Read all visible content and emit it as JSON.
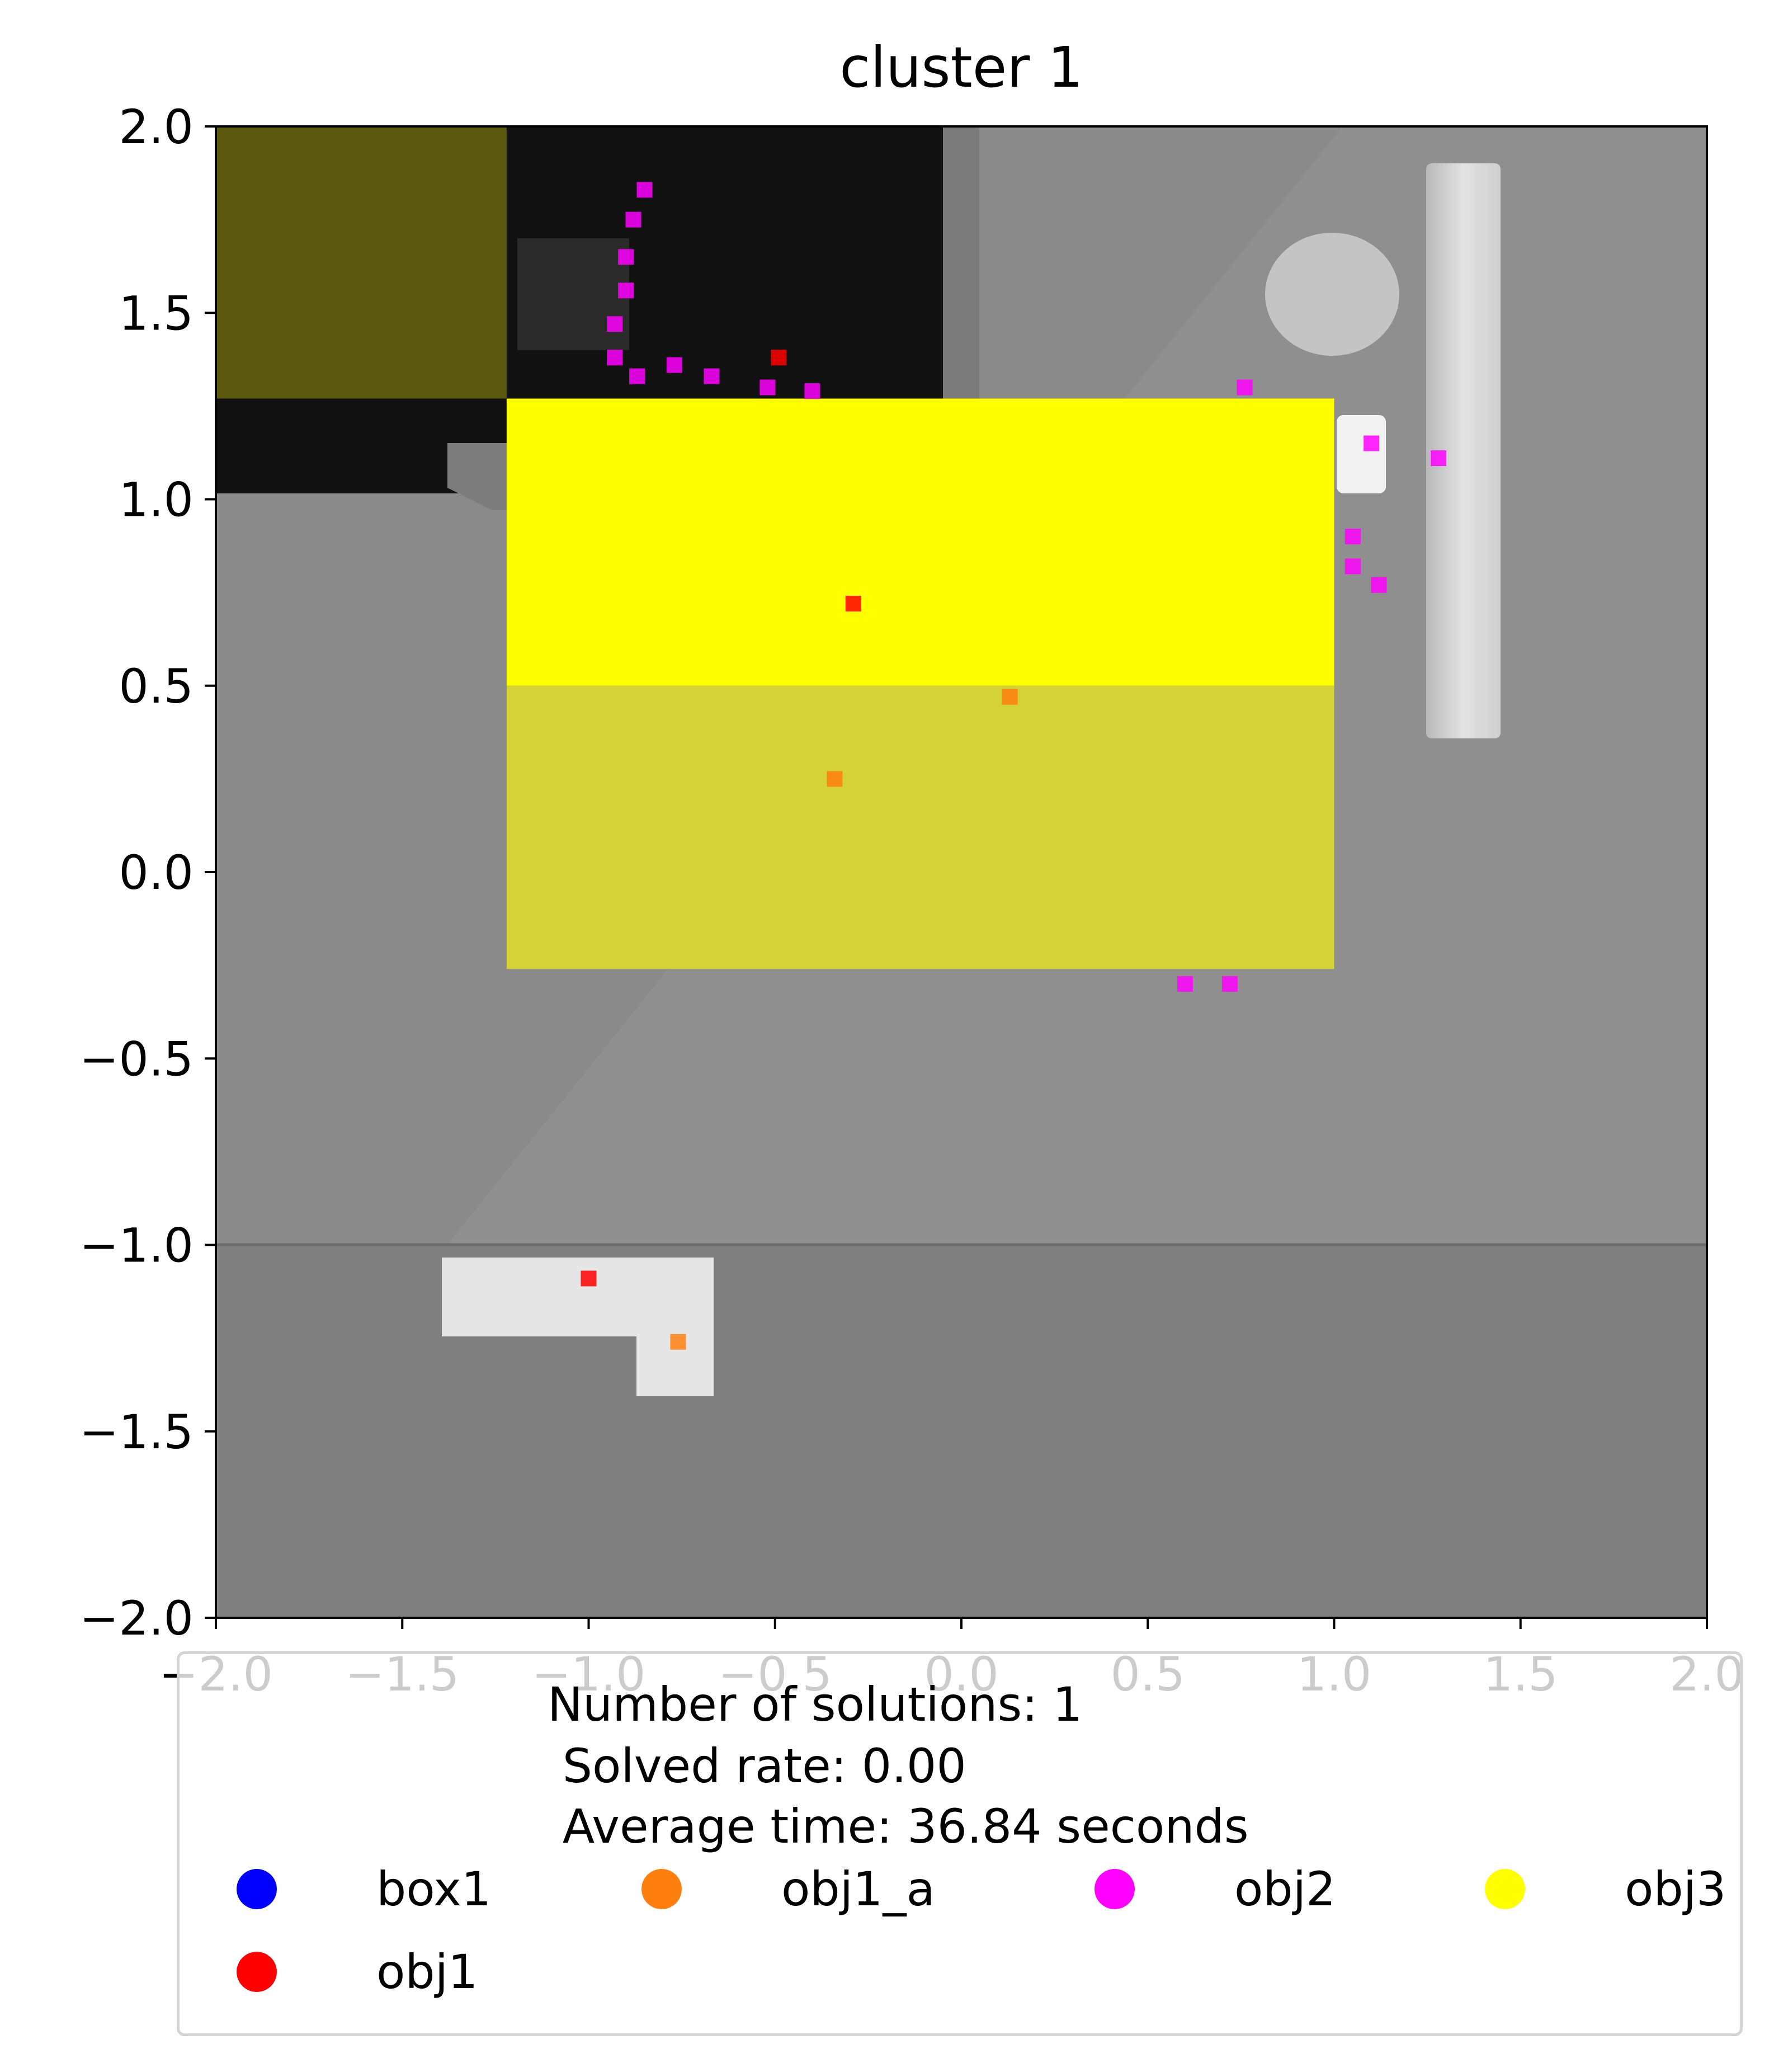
{
  "chart_data": {
    "type": "scatter",
    "title": "cluster 1",
    "xlim": [
      -2.0,
      2.0
    ],
    "ylim": [
      -2.0,
      2.0
    ],
    "x_ticks": [
      "−2.0",
      "−1.5",
      "−1.0",
      "−0.5",
      "0.0",
      "0.5",
      "1.0",
      "1.5",
      "2.0"
    ],
    "y_ticks": [
      "2.0",
      "1.5",
      "1.0",
      "0.5",
      "0.0",
      "−0.5",
      "−1.0",
      "−1.5",
      "−2.0"
    ],
    "x_tick_values": [
      -2.0,
      -1.5,
      -1.0,
      -0.5,
      0.0,
      0.5,
      1.0,
      1.5,
      2.0
    ],
    "y_tick_values": [
      2.0,
      1.5,
      1.0,
      0.5,
      0.0,
      -0.5,
      -1.0,
      -1.5,
      -2.0
    ],
    "grid": false,
    "legend_placement": "below",
    "background": "top-down grey scene render",
    "regions": [
      {
        "name": "obj3",
        "x": [
          -2.0,
          -1.22
        ],
        "y": [
          1.27,
          2.0
        ],
        "color": "#5b5a0f"
      },
      {
        "name": "obj3",
        "x": [
          -1.22,
          1.0
        ],
        "y": [
          0.5,
          1.27
        ],
        "color": "#ffff00"
      },
      {
        "name": "obj3",
        "x": [
          -1.22,
          1.0
        ],
        "y": [
          -0.26,
          0.5
        ],
        "color": "#d4d237"
      }
    ],
    "series": [
      {
        "name": "box1",
        "color": "#0000ff",
        "points": []
      },
      {
        "name": "obj1",
        "color": "#ff0000",
        "points": [
          [
            -1.0,
            -1.09
          ],
          [
            -0.49,
            1.38
          ],
          [
            -0.29,
            0.72
          ]
        ]
      },
      {
        "name": "obj1_a",
        "color": "#ff7f0e",
        "points": [
          [
            -0.76,
            -1.26
          ],
          [
            -0.34,
            0.25
          ],
          [
            0.13,
            0.47
          ]
        ]
      },
      {
        "name": "obj2",
        "color": "#ff00ff",
        "points": [
          [
            -0.85,
            1.83
          ],
          [
            -0.88,
            1.75
          ],
          [
            -0.9,
            1.65
          ],
          [
            -0.9,
            1.56
          ],
          [
            -0.93,
            1.47
          ],
          [
            -0.93,
            1.38
          ],
          [
            -0.87,
            1.33
          ],
          [
            -0.77,
            1.36
          ],
          [
            -0.67,
            1.33
          ],
          [
            -0.52,
            1.3
          ],
          [
            -0.4,
            1.29
          ],
          [
            0.76,
            1.3
          ],
          [
            1.1,
            1.15
          ],
          [
            1.28,
            1.11
          ],
          [
            1.05,
            0.9
          ],
          [
            1.05,
            0.82
          ],
          [
            1.12,
            0.77
          ],
          [
            0.6,
            -0.3
          ],
          [
            0.72,
            -0.3
          ]
        ]
      },
      {
        "name": "obj3",
        "color": "#ffff00",
        "points": []
      }
    ]
  },
  "legend": {
    "title_lines": [
      "Number of solutions: 1",
      " Solved rate: 0.00",
      " Average time: 36.84 seconds"
    ],
    "items": [
      {
        "label": "box1",
        "color": "#0000ff"
      },
      {
        "label": "obj1_a",
        "color": "#ff7f0e"
      },
      {
        "label": "obj2",
        "color": "#ff00ff"
      },
      {
        "label": "obj3",
        "color": "#ffff00"
      },
      {
        "label": "obj1",
        "color": "#ff0000"
      }
    ]
  }
}
